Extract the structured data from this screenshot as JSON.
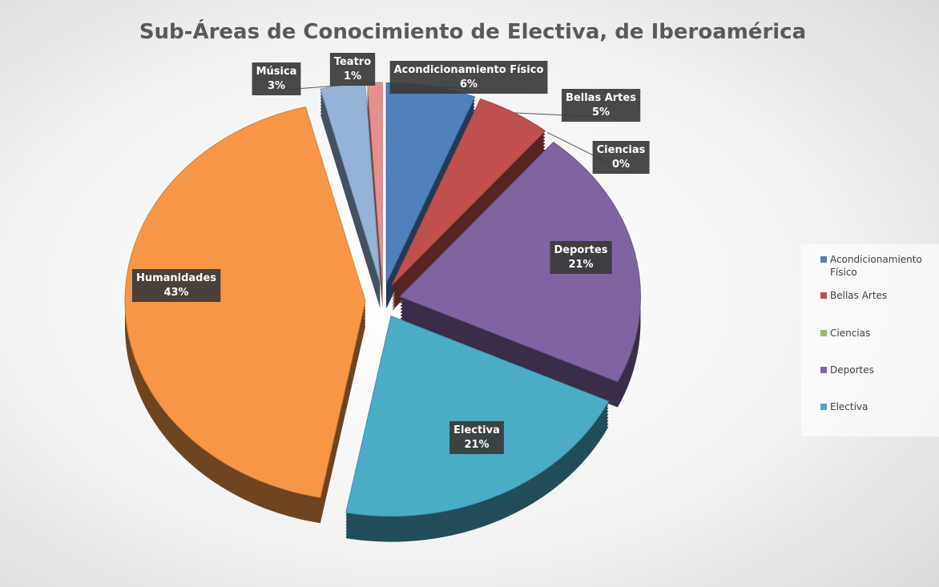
{
  "chart_data": {
    "type": "pie",
    "title": "Sub-Áreas de Conocimiento de Electiva, de Iberoamérica",
    "categories": [
      "Acondicionamiento Físico",
      "Bellas Artes",
      "Ciencias",
      "Deportes",
      "Electiva",
      "Humanidades",
      "Música",
      "Teatro"
    ],
    "values": [
      6,
      5,
      0,
      21,
      21,
      43,
      3,
      1
    ],
    "value_labels": [
      "6%",
      "5%",
      "0%",
      "21%",
      "21%",
      "43%",
      "3%",
      "1%"
    ],
    "colors": [
      "#4f81bd",
      "#c0504d",
      "#9bbb59",
      "#8064a2",
      "#4bacc6",
      "#f79646",
      "#95b3d7",
      "#e6908e"
    ],
    "legend": "right"
  }
}
